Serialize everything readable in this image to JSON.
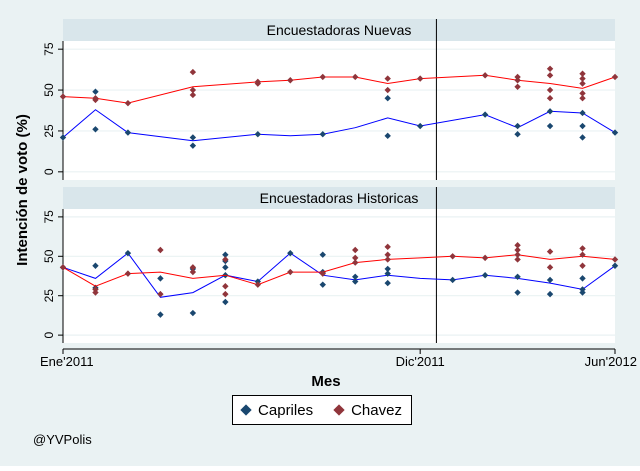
{
  "chart_data": {
    "type": "line",
    "ylabel": "Intención de voto (%)",
    "xlabel": "Mes",
    "xlim": [
      "2011-01",
      "2012-06"
    ],
    "ylim": [
      -5,
      80
    ],
    "yticks": [
      0,
      25,
      50,
      75
    ],
    "xticks": [
      {
        "label": "Ene'2011",
        "x": 0
      },
      {
        "label": "Dic'2011",
        "x": 11
      },
      {
        "label": "Jun'2012",
        "x": 17
      }
    ],
    "reference_line_x": 11.5,
    "grid": true,
    "legend_position": "bottom",
    "panels": [
      {
        "title": "Encuestadoras Nuevas",
        "series": [
          {
            "name": "Capriles",
            "color": "#1a476f",
            "line_color": "#0000ff",
            "line": [
              [
                0,
                21
              ],
              [
                1,
                38
              ],
              [
                2,
                24
              ],
              [
                4,
                19
              ],
              [
                6,
                23
              ],
              [
                7,
                22
              ],
              [
                8,
                23
              ],
              [
                9,
                27
              ],
              [
                10,
                33
              ],
              [
                11,
                28
              ],
              [
                13,
                35
              ],
              [
                14,
                27
              ],
              [
                15,
                37
              ],
              [
                16,
                36
              ],
              [
                17,
                24
              ]
            ],
            "points": [
              [
                0,
                21
              ],
              [
                1,
                49
              ],
              [
                1,
                26
              ],
              [
                2,
                24
              ],
              [
                4,
                16
              ],
              [
                4,
                21
              ],
              [
                6,
                23
              ],
              [
                8,
                23
              ],
              [
                10,
                22
              ],
              [
                10,
                45
              ],
              [
                11,
                28
              ],
              [
                13,
                35
              ],
              [
                14,
                23
              ],
              [
                14,
                28
              ],
              [
                15,
                28
              ],
              [
                15,
                37
              ],
              [
                16,
                21
              ],
              [
                16,
                28
              ],
              [
                16,
                36
              ],
              [
                17,
                24
              ]
            ]
          },
          {
            "name": "Chavez",
            "color": "#90353b",
            "line_color": "#ff0000",
            "line": [
              [
                0,
                46
              ],
              [
                1,
                45
              ],
              [
                2,
                42
              ],
              [
                4,
                52
              ],
              [
                6,
                55
              ],
              [
                7,
                56
              ],
              [
                8,
                58
              ],
              [
                9,
                58
              ],
              [
                10,
                54
              ],
              [
                11,
                57
              ],
              [
                13,
                59
              ],
              [
                14,
                56
              ],
              [
                15,
                54
              ],
              [
                16,
                51
              ],
              [
                17,
                58
              ]
            ],
            "points": [
              [
                0,
                46
              ],
              [
                1,
                45
              ],
              [
                1,
                44
              ],
              [
                2,
                42
              ],
              [
                4,
                61
              ],
              [
                4,
                50
              ],
              [
                4,
                47
              ],
              [
                6,
                55
              ],
              [
                6,
                54
              ],
              [
                7,
                56
              ],
              [
                8,
                58
              ],
              [
                9,
                58
              ],
              [
                10,
                57
              ],
              [
                10,
                50
              ],
              [
                11,
                57
              ],
              [
                13,
                59
              ],
              [
                14,
                58
              ],
              [
                14,
                56
              ],
              [
                14,
                52
              ],
              [
                15,
                63
              ],
              [
                15,
                59
              ],
              [
                15,
                50
              ],
              [
                15,
                45
              ],
              [
                16,
                60
              ],
              [
                16,
                57
              ],
              [
                16,
                54
              ],
              [
                16,
                48
              ],
              [
                16,
                45
              ],
              [
                17,
                58
              ]
            ]
          }
        ]
      },
      {
        "title": "Encuestadoras Historicas",
        "series": [
          {
            "name": "Capriles",
            "color": "#1a476f",
            "line_color": "#0000ff",
            "line": [
              [
                0,
                43
              ],
              [
                1,
                36
              ],
              [
                2,
                52
              ],
              [
                3,
                24
              ],
              [
                4,
                27
              ],
              [
                5,
                38
              ],
              [
                6,
                34
              ],
              [
                7,
                52
              ],
              [
                8,
                38
              ],
              [
                9,
                35
              ],
              [
                10,
                38
              ],
              [
                11,
                36
              ],
              [
                12,
                35
              ],
              [
                13,
                38
              ],
              [
                14,
                36
              ],
              [
                15,
                33
              ],
              [
                16,
                29
              ],
              [
                17,
                44
              ]
            ],
            "points": [
              [
                0,
                43
              ],
              [
                1,
                44
              ],
              [
                1,
                30
              ],
              [
                2,
                52
              ],
              [
                3,
                36
              ],
              [
                3,
                13
              ],
              [
                4,
                42
              ],
              [
                4,
                14
              ],
              [
                5,
                51
              ],
              [
                5,
                47
              ],
              [
                5,
                43
              ],
              [
                5,
                38
              ],
              [
                5,
                21
              ],
              [
                6,
                34
              ],
              [
                7,
                52
              ],
              [
                8,
                51
              ],
              [
                8,
                40
              ],
              [
                8,
                32
              ],
              [
                9,
                37
              ],
              [
                9,
                34
              ],
              [
                10,
                42
              ],
              [
                10,
                39
              ],
              [
                10,
                33
              ],
              [
                12,
                35
              ],
              [
                13,
                38
              ],
              [
                14,
                37
              ],
              [
                14,
                27
              ],
              [
                15,
                35
              ],
              [
                15,
                26
              ],
              [
                16,
                36
              ],
              [
                16,
                29
              ],
              [
                16,
                27
              ],
              [
                17,
                44
              ]
            ]
          },
          {
            "name": "Chavez",
            "color": "#90353b",
            "line_color": "#ff0000",
            "line": [
              [
                0,
                43
              ],
              [
                1,
                31
              ],
              [
                2,
                39
              ],
              [
                3,
                40
              ],
              [
                4,
                36
              ],
              [
                5,
                38
              ],
              [
                6,
                32
              ],
              [
                7,
                40
              ],
              [
                8,
                40
              ],
              [
                9,
                46
              ],
              [
                10,
                48
              ],
              [
                11,
                49
              ],
              [
                12,
                50
              ],
              [
                13,
                49
              ],
              [
                14,
                51
              ],
              [
                15,
                48
              ],
              [
                16,
                50
              ],
              [
                17,
                48
              ]
            ],
            "points": [
              [
                0,
                43
              ],
              [
                1,
                29
              ],
              [
                1,
                27
              ],
              [
                2,
                39
              ],
              [
                3,
                54
              ],
              [
                3,
                26
              ],
              [
                4,
                43
              ],
              [
                4,
                40
              ],
              [
                5,
                48
              ],
              [
                5,
                31
              ],
              [
                5,
                26
              ],
              [
                6,
                32
              ],
              [
                7,
                40
              ],
              [
                8,
                39
              ],
              [
                9,
                54
              ],
              [
                9,
                49
              ],
              [
                9,
                46
              ],
              [
                10,
                56
              ],
              [
                10,
                51
              ],
              [
                10,
                48
              ],
              [
                12,
                50
              ],
              [
                13,
                49
              ],
              [
                14,
                57
              ],
              [
                14,
                54
              ],
              [
                14,
                51
              ],
              [
                14,
                48
              ],
              [
                15,
                53
              ],
              [
                15,
                43
              ],
              [
                16,
                55
              ],
              [
                16,
                51
              ],
              [
                16,
                44
              ],
              [
                17,
                48
              ]
            ]
          }
        ]
      }
    ]
  },
  "legend": {
    "capriles_label": "Capriles",
    "chavez_label": "Chavez"
  },
  "footer": {
    "handle": "@YVPolis"
  }
}
